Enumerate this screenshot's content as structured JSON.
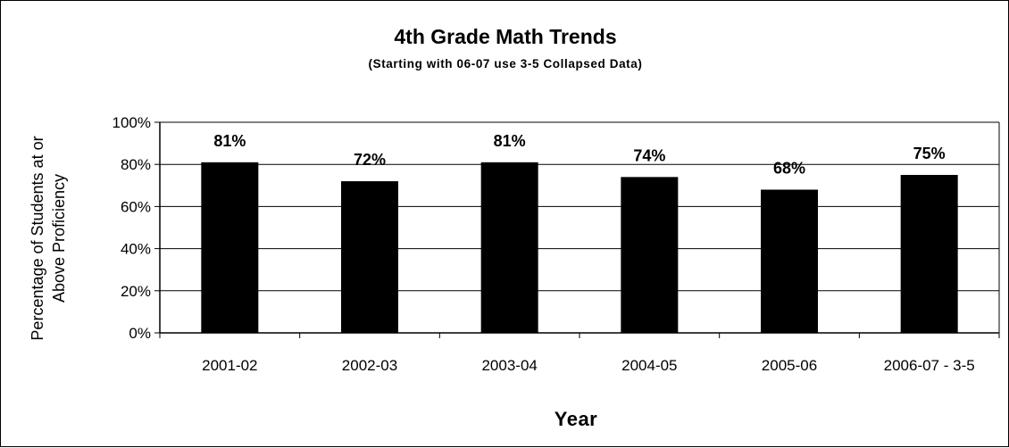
{
  "chart_data": {
    "type": "bar",
    "title": "4th Grade Math Trends",
    "subtitle": "(Starting with 06-07 use 3-5 Collapsed Data)",
    "xlabel": "Year",
    "ylabel_lines": [
      "Percentage of Students at or",
      "Above Proficiency"
    ],
    "categories": [
      "2001-02",
      "2002-03",
      "2003-04",
      "2004-05",
      "2005-06",
      "2006-07 - 3-5"
    ],
    "values": [
      81,
      72,
      81,
      74,
      68,
      75
    ],
    "data_labels": [
      "81%",
      "72%",
      "81%",
      "74%",
      "68%",
      "75%"
    ],
    "ylim": [
      0,
      100
    ],
    "yticks": [
      0,
      20,
      40,
      60,
      80,
      100
    ],
    "ytick_labels": [
      "0%",
      "20%",
      "40%",
      "60%",
      "80%",
      "100%"
    ],
    "grid": true,
    "legend": "none",
    "bar_color": "#000000",
    "grid_color": "#000000"
  }
}
